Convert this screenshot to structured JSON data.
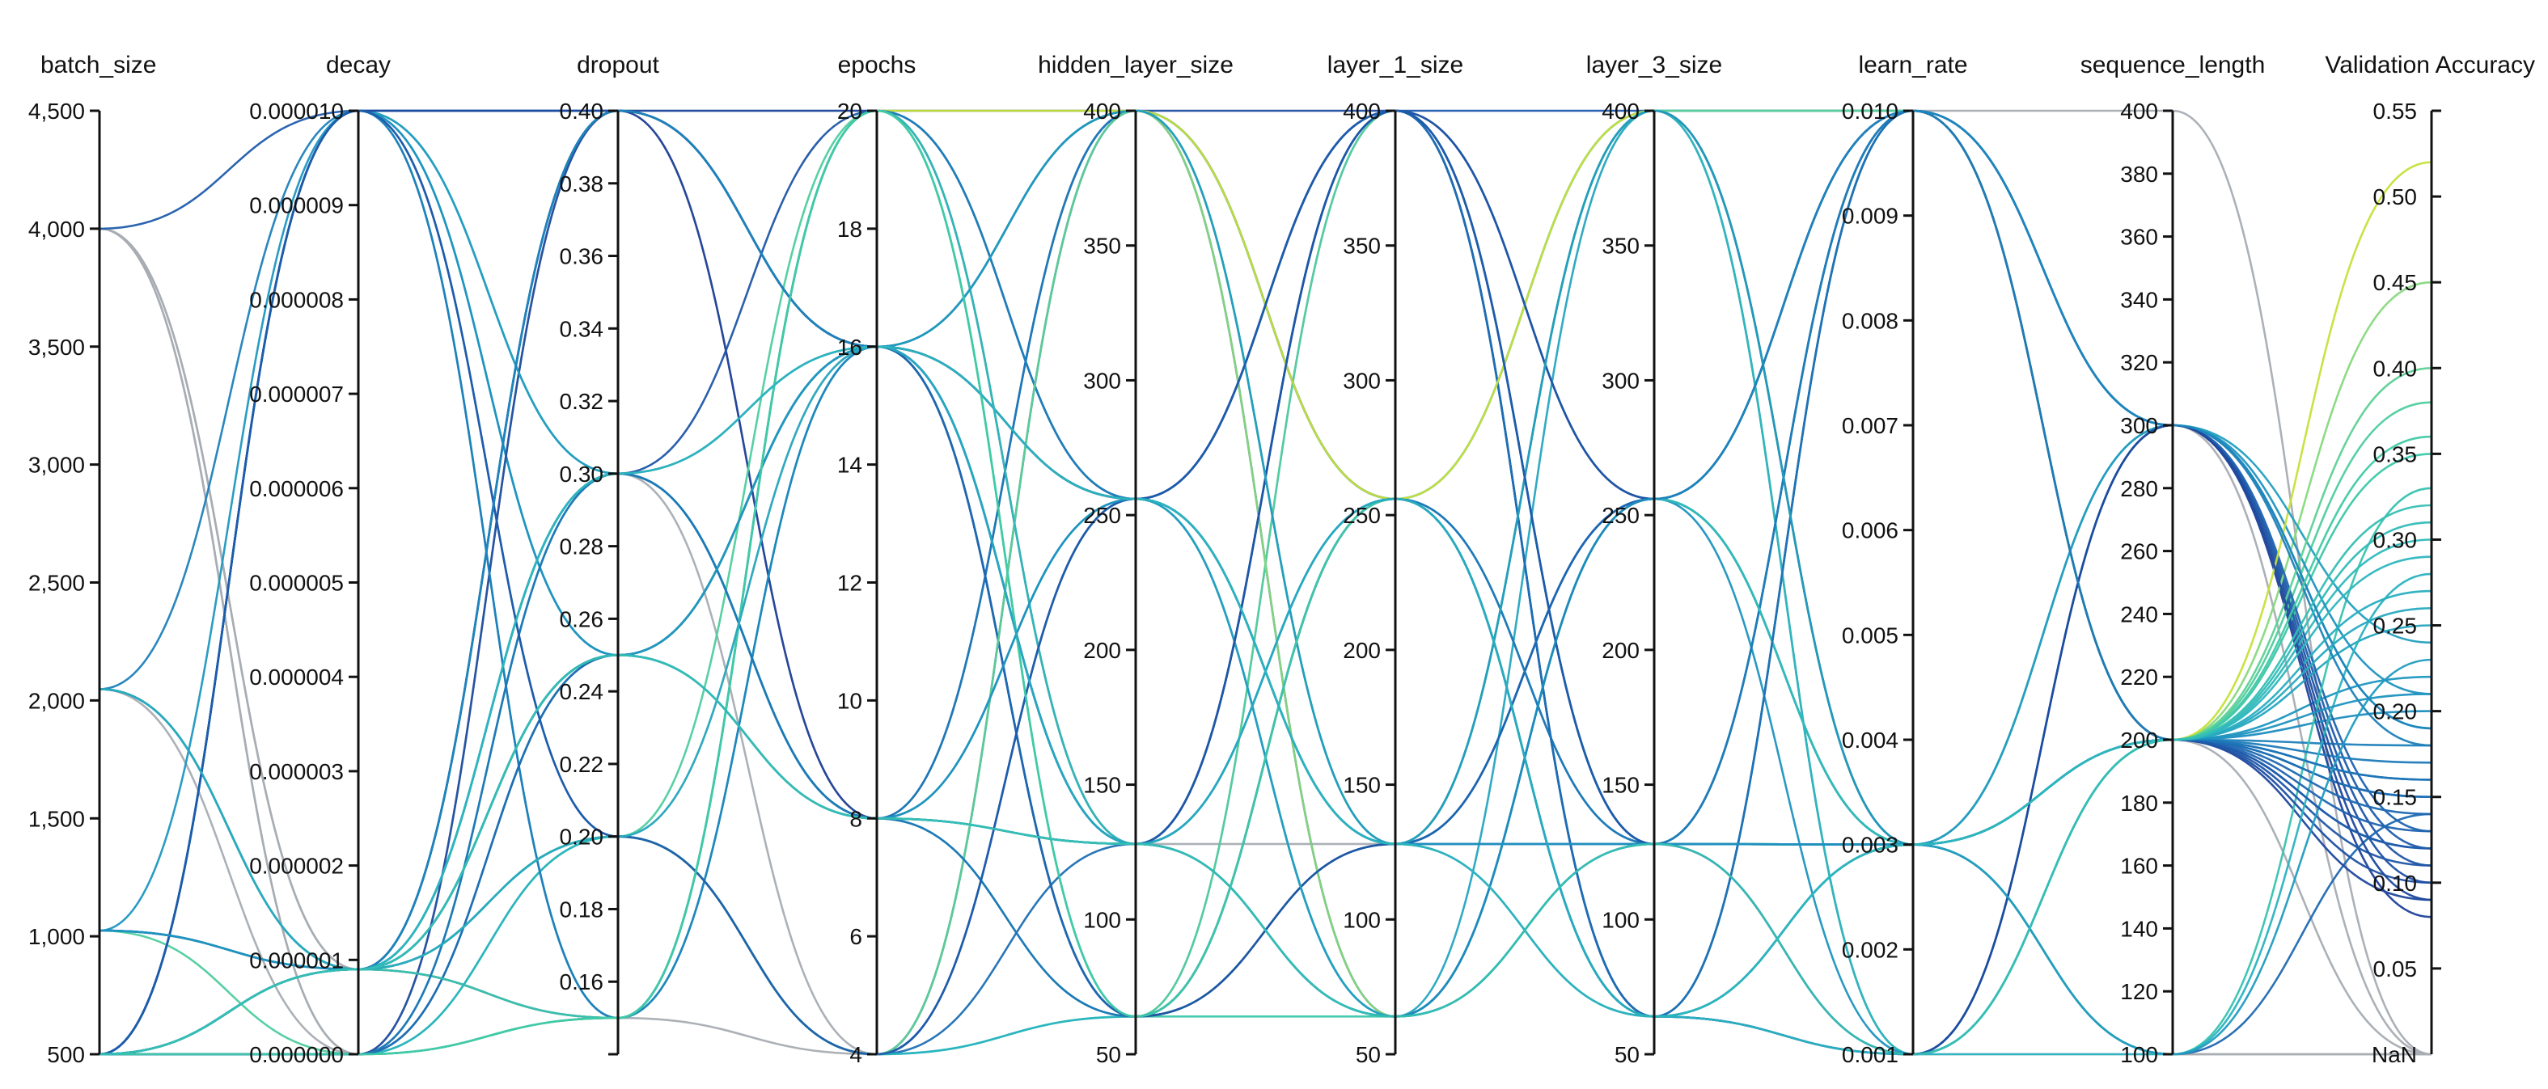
{
  "chart_data": {
    "type": "parallel_coordinates",
    "title": "",
    "axes": [
      {
        "key": "batch_size",
        "label": "batch_size",
        "min": 500,
        "max": 4500,
        "ticks": [
          500,
          1000,
          1500,
          2000,
          2500,
          3000,
          3500,
          4000,
          4500
        ],
        "tick_labels": [
          "500",
          "1,000",
          "1,500",
          "2,000",
          "2,500",
          "3,000",
          "3,500",
          "4,000",
          "4,500"
        ]
      },
      {
        "key": "decay",
        "label": "decay",
        "min": 0.0,
        "max": 1e-05,
        "ticks": [
          0,
          1e-06,
          2e-06,
          3e-06,
          4e-06,
          5e-06,
          6e-06,
          7e-06,
          8e-06,
          9e-06,
          1e-05
        ],
        "tick_labels": [
          "0.000000",
          "0.000001",
          "0.000002",
          "0.000003",
          "0.000004",
          "0.000005",
          "0.000006",
          "0.000007",
          "0.000008",
          "0.000009",
          "0.000010"
        ]
      },
      {
        "key": "dropout",
        "label": "dropout",
        "min": 0.14,
        "max": 0.4,
        "ticks": [
          0.14,
          0.16,
          0.18,
          0.2,
          0.22,
          0.24,
          0.26,
          0.28,
          0.3,
          0.32,
          0.34,
          0.36,
          0.38,
          0.4
        ],
        "tick_labels": [
          "",
          "0.16",
          "0.18",
          "0.20",
          "0.22",
          "0.24",
          "0.26",
          "0.28",
          "0.30",
          "0.32",
          "0.34",
          "0.36",
          "0.38",
          "0.40"
        ]
      },
      {
        "key": "epochs",
        "label": "epochs",
        "min": 4,
        "max": 20,
        "ticks": [
          4,
          6,
          8,
          10,
          12,
          14,
          16,
          18,
          20
        ],
        "tick_labels": [
          "4",
          "6",
          "8",
          "10",
          "12",
          "14",
          "16",
          "18",
          "20"
        ]
      },
      {
        "key": "hidden_layer_size",
        "label": "hidden_layer_size",
        "min": 50,
        "max": 400,
        "ticks": [
          50,
          100,
          150,
          200,
          250,
          300,
          350,
          400
        ],
        "tick_labels": [
          "50",
          "100",
          "150",
          "200",
          "250",
          "300",
          "350",
          "400"
        ]
      },
      {
        "key": "layer_1_size",
        "label": "layer_1_size",
        "min": 50,
        "max": 400,
        "ticks": [
          50,
          100,
          150,
          200,
          250,
          300,
          350,
          400
        ],
        "tick_labels": [
          "50",
          "100",
          "150",
          "200",
          "250",
          "300",
          "350",
          "400"
        ]
      },
      {
        "key": "layer_3_size",
        "label": "layer_3_size",
        "min": 50,
        "max": 400,
        "ticks": [
          50,
          100,
          150,
          200,
          250,
          300,
          350,
          400
        ],
        "tick_labels": [
          "50",
          "100",
          "150",
          "200",
          "250",
          "300",
          "350",
          "400"
        ]
      },
      {
        "key": "learn_rate",
        "label": "learn_rate",
        "min": 0.001,
        "max": 0.01,
        "ticks": [
          0.001,
          0.002,
          0.003,
          0.004,
          0.005,
          0.006,
          0.007,
          0.008,
          0.009,
          0.01
        ],
        "tick_labels": [
          "0.001",
          "0.002",
          "0.003",
          "0.004",
          "0.005",
          "0.006",
          "0.007",
          "0.008",
          "0.009",
          "0.010"
        ]
      },
      {
        "key": "sequence_length",
        "label": "sequence_length",
        "min": 100,
        "max": 400,
        "ticks": [
          100,
          120,
          140,
          160,
          180,
          200,
          220,
          240,
          260,
          280,
          300,
          320,
          340,
          360,
          380,
          400
        ],
        "tick_labels": [
          "100",
          "120",
          "140",
          "160",
          "180",
          "200",
          "220",
          "240",
          "260",
          "280",
          "300",
          "320",
          "340",
          "360",
          "380",
          "400"
        ]
      },
      {
        "key": "validation_accuracy",
        "label": "Validation Accuracy",
        "min": 0.0,
        "max": 0.55,
        "ticks": [
          0.05,
          0.1,
          0.15,
          0.2,
          0.25,
          0.3,
          0.35,
          0.4,
          0.45,
          0.5,
          0.55
        ],
        "tick_labels": [
          "0.05",
          "0.10",
          "0.15",
          "0.20",
          "0.25",
          "0.30",
          "0.35",
          "0.40",
          "0.45",
          "0.50",
          "0.55"
        ],
        "nan_label": "NaN"
      }
    ],
    "color_scale": {
      "metric": "validation_accuracy",
      "stops": [
        "#1f2d8a",
        "#1f62b0",
        "#1d91c0",
        "#2bb5c0",
        "#41cba4",
        "#7fd886",
        "#c7e03a"
      ],
      "nan_color": "#a8adb3"
    },
    "runs": [
      [
        4000,
        1e-05,
        0.4,
        16,
        256,
        400,
        400,
        0.01,
        300,
        0.12
      ],
      [
        4000,
        0.0,
        0.15,
        4,
        400,
        256,
        64,
        0.001,
        100,
        null
      ],
      [
        4000,
        9e-07,
        0.3,
        8,
        128,
        128,
        256,
        0.003,
        200,
        null
      ],
      [
        4000,
        0.0,
        0.4,
        20,
        256,
        64,
        128,
        0.01,
        400,
        null
      ],
      [
        4000,
        9e-07,
        0.2,
        16,
        64,
        400,
        256,
        0.003,
        300,
        null
      ],
      [
        2048,
        1e-05,
        0.3,
        16,
        256,
        128,
        64,
        0.003,
        200,
        0.18
      ],
      [
        2048,
        9e-07,
        0.25,
        8,
        128,
        256,
        400,
        0.001,
        200,
        0.15
      ],
      [
        2048,
        9e-07,
        0.15,
        20,
        400,
        400,
        256,
        0.01,
        300,
        0.1
      ],
      [
        2048,
        9e-07,
        0.2,
        4,
        64,
        64,
        128,
        0.003,
        200,
        0.35
      ],
      [
        2048,
        0.0,
        0.4,
        8,
        256,
        128,
        400,
        0.003,
        100,
        null
      ],
      [
        1024,
        1e-05,
        0.25,
        16,
        128,
        256,
        64,
        0.001,
        200,
        0.22
      ],
      [
        1024,
        9e-07,
        0.4,
        8,
        400,
        64,
        256,
        0.01,
        300,
        0.08
      ],
      [
        1024,
        0.0,
        0.2,
        20,
        64,
        400,
        128,
        0.003,
        200,
        0.38
      ],
      [
        1024,
        9e-07,
        0.3,
        4,
        256,
        128,
        400,
        0.003,
        100,
        null
      ],
      [
        1024,
        9e-07,
        0.15,
        16,
        400,
        256,
        64,
        0.01,
        200,
        0.2
      ],
      [
        500,
        1e-05,
        0.4,
        16,
        64,
        128,
        256,
        0.003,
        200,
        0.16
      ],
      [
        500,
        9e-07,
        0.3,
        20,
        256,
        400,
        64,
        0.001,
        300,
        0.11
      ],
      [
        500,
        0.0,
        0.25,
        8,
        128,
        64,
        400,
        0.01,
        200,
        0.25
      ],
      [
        500,
        9e-07,
        0.2,
        4,
        400,
        256,
        128,
        0.003,
        100,
        0.14
      ],
      [
        500,
        1e-05,
        0.15,
        16,
        256,
        128,
        256,
        0.003,
        300,
        0.19
      ],
      [
        500,
        9e-07,
        0.4,
        20,
        128,
        400,
        64,
        0.01,
        200,
        0.09
      ],
      [
        500,
        0.0,
        0.3,
        8,
        64,
        256,
        400,
        0.001,
        200,
        0.3
      ],
      [
        500,
        9e-07,
        0.25,
        16,
        400,
        64,
        128,
        0.003,
        200,
        0.45
      ],
      [
        500,
        1e-05,
        0.2,
        4,
        256,
        128,
        256,
        0.01,
        300,
        0.13
      ],
      [
        500,
        9e-07,
        0.4,
        16,
        128,
        400,
        64,
        0.003,
        200,
        0.12
      ],
      [
        500,
        0.0,
        0.15,
        20,
        64,
        128,
        400,
        0.003,
        100,
        0.33
      ],
      [
        500,
        9e-07,
        0.3,
        8,
        400,
        256,
        128,
        0.01,
        200,
        0.17
      ],
      [
        500,
        1e-05,
        0.25,
        16,
        256,
        64,
        256,
        0.001,
        300,
        0.21
      ],
      [
        500,
        9e-07,
        0.2,
        4,
        128,
        400,
        64,
        0.003,
        200,
        0.15
      ],
      [
        500,
        0.0,
        0.4,
        16,
        64,
        128,
        128,
        0.01,
        200,
        0.1
      ],
      [
        500,
        9e-07,
        0.15,
        20,
        400,
        256,
        400,
        0.003,
        200,
        0.52
      ],
      [
        500,
        1e-05,
        0.3,
        8,
        256,
        64,
        128,
        0.003,
        300,
        0.24
      ],
      [
        500,
        9e-07,
        0.25,
        16,
        128,
        400,
        256,
        0.01,
        200,
        0.11
      ],
      [
        500,
        0.0,
        0.2,
        4,
        64,
        256,
        64,
        0.001,
        100,
        0.28
      ],
      [
        500,
        9e-07,
        0.4,
        16,
        400,
        128,
        400,
        0.003,
        200,
        0.13
      ],
      [
        500,
        1e-05,
        0.15,
        20,
        256,
        400,
        128,
        0.01,
        300,
        0.18
      ],
      [
        500,
        9e-07,
        0.3,
        8,
        128,
        64,
        256,
        0.003,
        200,
        0.27
      ],
      [
        500,
        0.0,
        0.25,
        16,
        64,
        256,
        64,
        0.003,
        200,
        0.14
      ],
      [
        500,
        9e-07,
        0.2,
        4,
        400,
        128,
        400,
        0.01,
        200,
        0.4
      ],
      [
        500,
        1e-05,
        0.4,
        16,
        256,
        400,
        128,
        0.001,
        300,
        0.09
      ],
      [
        500,
        9e-07,
        0.15,
        20,
        128,
        64,
        256,
        0.003,
        200,
        0.31
      ],
      [
        500,
        0.0,
        0.3,
        8,
        64,
        256,
        64,
        0.01,
        200,
        0.16
      ],
      [
        500,
        9e-07,
        0.25,
        16,
        400,
        128,
        400,
        0.003,
        100,
        0.23
      ],
      [
        500,
        1e-05,
        0.2,
        4,
        256,
        400,
        128,
        0.003,
        200,
        0.12
      ],
      [
        500,
        9e-07,
        0.4,
        16,
        128,
        64,
        256,
        0.01,
        300,
        0.19
      ],
      [
        500,
        0.0,
        0.15,
        20,
        64,
        256,
        64,
        0.003,
        200,
        0.36
      ],
      [
        1024,
        9e-07,
        0.25,
        8,
        256,
        128,
        128,
        0.003,
        200,
        0.21
      ],
      [
        2048,
        9e-07,
        0.2,
        16,
        128,
        256,
        64,
        0.003,
        200,
        0.26
      ],
      [
        500,
        9e-07,
        0.3,
        16,
        256,
        128,
        64,
        0.003,
        200,
        0.29
      ],
      [
        500,
        9e-07,
        0.25,
        8,
        128,
        64,
        128,
        0.001,
        200,
        0.32
      ]
    ]
  }
}
